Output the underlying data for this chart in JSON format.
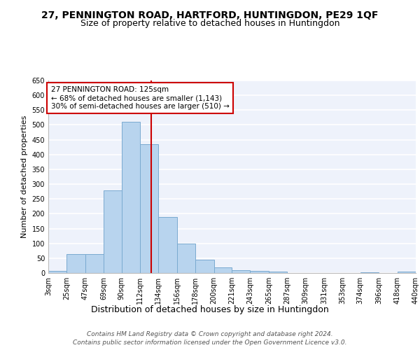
{
  "title": "27, PENNINGTON ROAD, HARTFORD, HUNTINGDON, PE29 1QF",
  "subtitle": "Size of property relative to detached houses in Huntingdon",
  "xlabel": "Distribution of detached houses by size in Huntingdon",
  "ylabel": "Number of detached properties",
  "bar_color": "#b8d4ee",
  "bar_edge_color": "#7aaad0",
  "background_color": "#eef2fb",
  "grid_color": "#ffffff",
  "vline_x": 125,
  "vline_color": "#cc0000",
  "annotation_text": "27 PENNINGTON ROAD: 125sqm\n← 68% of detached houses are smaller (1,143)\n30% of semi-detached houses are larger (510) →",
  "annotation_box_color": "#ffffff",
  "annotation_box_edge": "#cc0000",
  "bins": [
    3,
    25,
    47,
    69,
    90,
    112,
    134,
    156,
    178,
    200,
    221,
    243,
    265,
    287,
    309,
    331,
    353,
    374,
    396,
    418,
    440
  ],
  "counts": [
    8,
    65,
    65,
    280,
    510,
    435,
    190,
    100,
    45,
    18,
    10,
    8,
    5,
    0,
    0,
    0,
    0,
    3,
    0,
    5
  ],
  "tick_labels": [
    "3sqm",
    "25sqm",
    "47sqm",
    "69sqm",
    "90sqm",
    "112sqm",
    "134sqm",
    "156sqm",
    "178sqm",
    "200sqm",
    "221sqm",
    "243sqm",
    "265sqm",
    "287sqm",
    "309sqm",
    "331sqm",
    "353sqm",
    "374sqm",
    "396sqm",
    "418sqm",
    "440sqm"
  ],
  "ylim": [
    0,
    650
  ],
  "yticks": [
    0,
    50,
    100,
    150,
    200,
    250,
    300,
    350,
    400,
    450,
    500,
    550,
    600,
    650
  ],
  "footer_line1": "Contains HM Land Registry data © Crown copyright and database right 2024.",
  "footer_line2": "Contains public sector information licensed under the Open Government Licence v3.0.",
  "title_fontsize": 10,
  "subtitle_fontsize": 9,
  "xlabel_fontsize": 9,
  "ylabel_fontsize": 8,
  "tick_fontsize": 7,
  "footer_fontsize": 6.5,
  "annot_fontsize": 7.5
}
